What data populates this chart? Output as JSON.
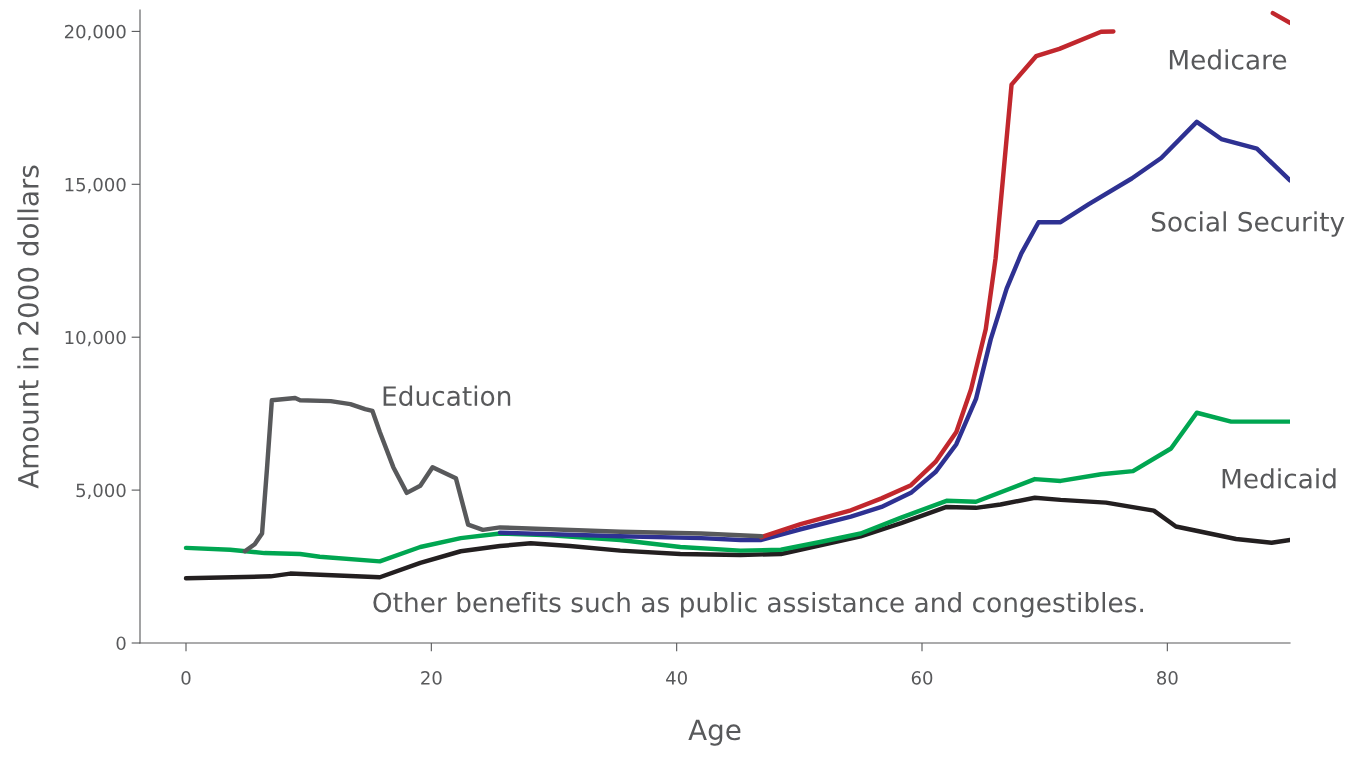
{
  "chart_data": {
    "type": "line",
    "xlabel": "Age",
    "ylabel": "Amount in 2000 dollars",
    "xlim": [
      -3.75,
      90
    ],
    "xticks": [
      0,
      20,
      40,
      60,
      80
    ],
    "ylim": [
      0,
      20700
    ],
    "yticks": [
      {
        "value": 0,
        "label": "0"
      },
      {
        "value": 5000,
        "label": "5,000"
      },
      {
        "value": 10000,
        "label": "10,000"
      },
      {
        "value": 15000,
        "label": "15,000"
      },
      {
        "value": 20000,
        "label": "20,000"
      }
    ],
    "grid": false,
    "legend": false,
    "series": [
      {
        "name": "Other benefits such as public assistance and congestibles.",
        "color": "#231f20",
        "x": [
          0,
          6.9,
          8.5,
          15.8,
          19.1,
          22.4,
          25.6,
          28.1,
          31.3,
          35.4,
          40.3,
          45.2,
          48.5,
          51.8,
          55,
          58.3,
          62,
          64.4,
          66.4,
          69.2,
          71.3,
          75,
          78.9,
          80.7,
          85.6,
          88.5,
          90
        ],
        "values": [
          2120,
          2180,
          2270,
          2150,
          2620,
          3000,
          3170,
          3260,
          3170,
          3020,
          2910,
          2880,
          2910,
          3200,
          3490,
          3920,
          4450,
          4420,
          4530,
          4750,
          4680,
          4590,
          4330,
          3810,
          3400,
          3280,
          3370
        ]
      },
      {
        "name": "Medicaid",
        "color": "#00a651",
        "x": [
          0,
          3.6,
          6.4,
          9.3,
          10.9,
          15.8,
          19.1,
          22.4,
          25.6,
          29.7,
          35.4,
          40.3,
          45.2,
          48.5,
          51.8,
          55,
          58.3,
          62,
          64.4,
          69.2,
          71.3,
          74.6,
          77.2,
          80.3,
          82.4,
          85.2,
          90
        ],
        "values": [
          3110,
          3050,
          2940,
          2910,
          2820,
          2670,
          3140,
          3430,
          3580,
          3520,
          3370,
          3140,
          3020,
          3050,
          3310,
          3580,
          4100,
          4650,
          4620,
          5360,
          5300,
          5520,
          5620,
          6360,
          7530,
          7240,
          7240
        ]
      },
      {
        "name": "Social Security",
        "color": "#2e3192",
        "x": [
          25.6,
          35.4,
          42,
          45.2,
          46.9,
          50.1,
          54.2,
          56.7,
          59.1,
          61.1,
          62.8,
          64.4,
          65.6,
          66.9,
          68.1,
          69.5,
          71.3,
          73.6,
          77.1,
          79.5,
          82.4,
          84.4,
          87.3,
          90
        ],
        "values": [
          3610,
          3490,
          3430,
          3370,
          3370,
          3720,
          4130,
          4450,
          4910,
          5590,
          6500,
          7980,
          9930,
          11590,
          12740,
          13760,
          13760,
          14350,
          15190,
          15860,
          17040,
          16480,
          16170,
          15130
        ]
      },
      {
        "name": "Medicare",
        "color": "#c1272d",
        "x": [
          46.9,
          50.1,
          54.2,
          56.7,
          59.1,
          61.1,
          62.8,
          64,
          65.2,
          66,
          66.6,
          67.3,
          69.3,
          71.2,
          74.6,
          75.6,
          80,
          85,
          88.6,
          90
        ],
        "values": [
          3460,
          3890,
          4340,
          4730,
          5160,
          5920,
          6900,
          8300,
          10270,
          12580,
          15190,
          18260,
          19190,
          19430,
          19990,
          20000,
          null,
          null,
          20600,
          20280
        ]
      },
      {
        "name": "Education",
        "color": "#58595b",
        "x": [
          4.8,
          5.6,
          6.2,
          6.6,
          7,
          8.9,
          9.3,
          11.8,
          13.4,
          14.6,
          15.2,
          15.8,
          16.9,
          18,
          19.1,
          20.1,
          22,
          23,
          24.2,
          25.6,
          35.4,
          42,
          46.9
        ],
        "values": [
          3000,
          3230,
          3580,
          5690,
          7940,
          8010,
          7940,
          7910,
          7810,
          7650,
          7590,
          6900,
          5750,
          4910,
          5140,
          5750,
          5390,
          3870,
          3700,
          3780,
          3640,
          3580,
          3490
        ]
      }
    ]
  }
}
